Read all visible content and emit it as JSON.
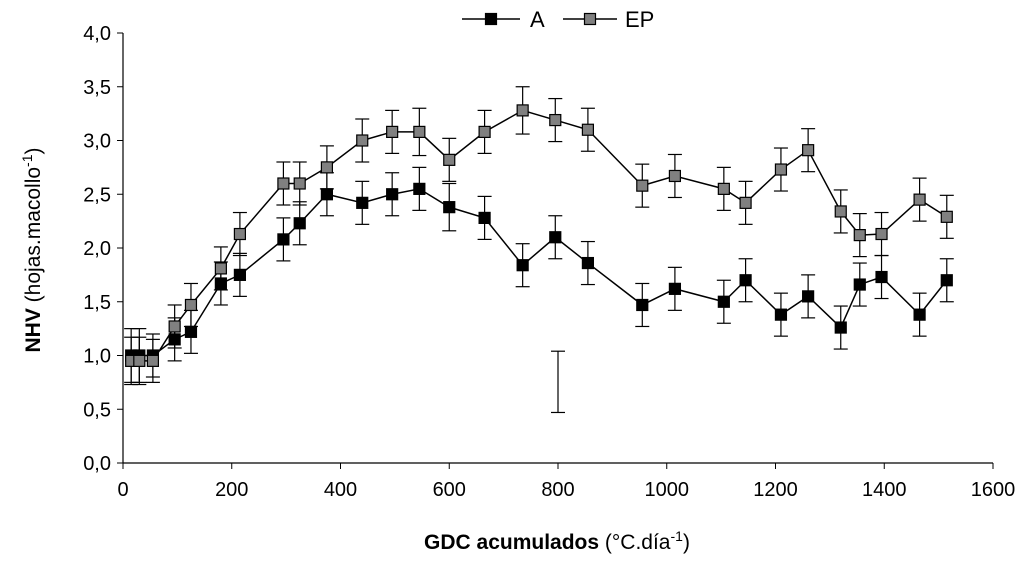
{
  "chart_data": {
    "type": "line",
    "x_axis": {
      "label_main": "GDC acumulados",
      "label_unit_pre": "(°C.día",
      "label_unit_sup": "-1",
      "label_unit_post": ")",
      "range": [
        0,
        1600
      ],
      "ticks": [
        0,
        200,
        400,
        600,
        800,
        1000,
        1200,
        1400,
        1600
      ],
      "tick_labels": [
        "0",
        "200",
        "400",
        "600",
        "800",
        "1000",
        "1200",
        "1400",
        "1600"
      ]
    },
    "y_axis": {
      "label_main": "NHV",
      "label_unit_pre": "(hojas.macollo",
      "label_unit_sup": "-1",
      "label_unit_post": ")",
      "range": [
        0,
        4.0
      ],
      "ticks": [
        0,
        0.5,
        1.0,
        1.5,
        2.0,
        2.5,
        3.0,
        3.5,
        4.0
      ],
      "tick_labels": [
        "0,0",
        "0,5",
        "1,0",
        "1,5",
        "2,0",
        "2,5",
        "3,0",
        "3,5",
        "4,0"
      ]
    },
    "grid": false,
    "legend_position": "top-center",
    "series": [
      {
        "name": "A",
        "color": "#000000",
        "marker": "square",
        "points": [
          {
            "x": 15,
            "y": 1.0,
            "err": 0.25
          },
          {
            "x": 30,
            "y": 1.0,
            "err": 0.25
          },
          {
            "x": 55,
            "y": 1.0,
            "err": 0.2
          },
          {
            "x": 95,
            "y": 1.15,
            "err": 0.2
          },
          {
            "x": 125,
            "y": 1.22,
            "err": 0.2
          },
          {
            "x": 180,
            "y": 1.67,
            "err": 0.2
          },
          {
            "x": 215,
            "y": 1.75,
            "err": 0.2
          },
          {
            "x": 295,
            "y": 2.08,
            "err": 0.2
          },
          {
            "x": 325,
            "y": 2.23,
            "err": 0.2
          },
          {
            "x": 375,
            "y": 2.5,
            "err": 0.2
          },
          {
            "x": 440,
            "y": 2.42,
            "err": 0.2
          },
          {
            "x": 495,
            "y": 2.5,
            "err": 0.2
          },
          {
            "x": 545,
            "y": 2.55,
            "err": 0.2
          },
          {
            "x": 600,
            "y": 2.38,
            "err": 0.22
          },
          {
            "x": 665,
            "y": 2.28,
            "err": 0.2
          },
          {
            "x": 735,
            "y": 1.84,
            "err": 0.2
          },
          {
            "x": 795,
            "y": 2.1,
            "err": 0.2
          },
          {
            "x": 855,
            "y": 1.86,
            "err": 0.2
          },
          {
            "x": 955,
            "y": 1.47,
            "err": 0.2
          },
          {
            "x": 1015,
            "y": 1.62,
            "err": 0.2
          },
          {
            "x": 1105,
            "y": 1.5,
            "err": 0.2
          },
          {
            "x": 1145,
            "y": 1.7,
            "err": 0.2
          },
          {
            "x": 1210,
            "y": 1.38,
            "err": 0.2
          },
          {
            "x": 1260,
            "y": 1.55,
            "err": 0.2
          },
          {
            "x": 1320,
            "y": 1.26,
            "err": 0.2
          },
          {
            "x": 1355,
            "y": 1.66,
            "err": 0.2
          },
          {
            "x": 1395,
            "y": 1.73,
            "err": 0.2
          },
          {
            "x": 1465,
            "y": 1.38,
            "err": 0.2
          },
          {
            "x": 1515,
            "y": 1.7,
            "err": 0.2
          }
        ]
      },
      {
        "name": "EP",
        "color": "#808080",
        "marker": "square",
        "points": [
          {
            "x": 15,
            "y": 0.95,
            "err": 0.22
          },
          {
            "x": 30,
            "y": 0.95,
            "err": 0.22
          },
          {
            "x": 55,
            "y": 0.95,
            "err": 0.2
          },
          {
            "x": 95,
            "y": 1.27,
            "err": 0.2
          },
          {
            "x": 125,
            "y": 1.47,
            "err": 0.2
          },
          {
            "x": 180,
            "y": 1.81,
            "err": 0.2
          },
          {
            "x": 215,
            "y": 2.13,
            "err": 0.2
          },
          {
            "x": 295,
            "y": 2.6,
            "err": 0.2
          },
          {
            "x": 325,
            "y": 2.6,
            "err": 0.2
          },
          {
            "x": 375,
            "y": 2.75,
            "err": 0.2
          },
          {
            "x": 440,
            "y": 3.0,
            "err": 0.2
          },
          {
            "x": 495,
            "y": 3.08,
            "err": 0.2
          },
          {
            "x": 545,
            "y": 3.08,
            "err": 0.22
          },
          {
            "x": 600,
            "y": 2.82,
            "err": 0.2
          },
          {
            "x": 665,
            "y": 3.08,
            "err": 0.2
          },
          {
            "x": 735,
            "y": 3.28,
            "err": 0.22
          },
          {
            "x": 795,
            "y": 3.19,
            "err": 0.2
          },
          {
            "x": 855,
            "y": 3.1,
            "err": 0.2
          },
          {
            "x": 955,
            "y": 2.58,
            "err": 0.2
          },
          {
            "x": 1015,
            "y": 2.67,
            "err": 0.2
          },
          {
            "x": 1105,
            "y": 2.55,
            "err": 0.2
          },
          {
            "x": 1145,
            "y": 2.42,
            "err": 0.2
          },
          {
            "x": 1210,
            "y": 2.73,
            "err": 0.2
          },
          {
            "x": 1260,
            "y": 2.91,
            "err": 0.2
          },
          {
            "x": 1320,
            "y": 2.34,
            "err": 0.2
          },
          {
            "x": 1355,
            "y": 2.12,
            "err": 0.2
          },
          {
            "x": 1395,
            "y": 2.13,
            "err": 0.2
          },
          {
            "x": 1465,
            "y": 2.45,
            "err": 0.2
          },
          {
            "x": 1515,
            "y": 2.29,
            "err": 0.2
          }
        ]
      }
    ],
    "annotations": [
      {
        "type": "lsd-bar",
        "x": 800,
        "y_low": 0.47,
        "y_high": 1.04
      }
    ]
  }
}
